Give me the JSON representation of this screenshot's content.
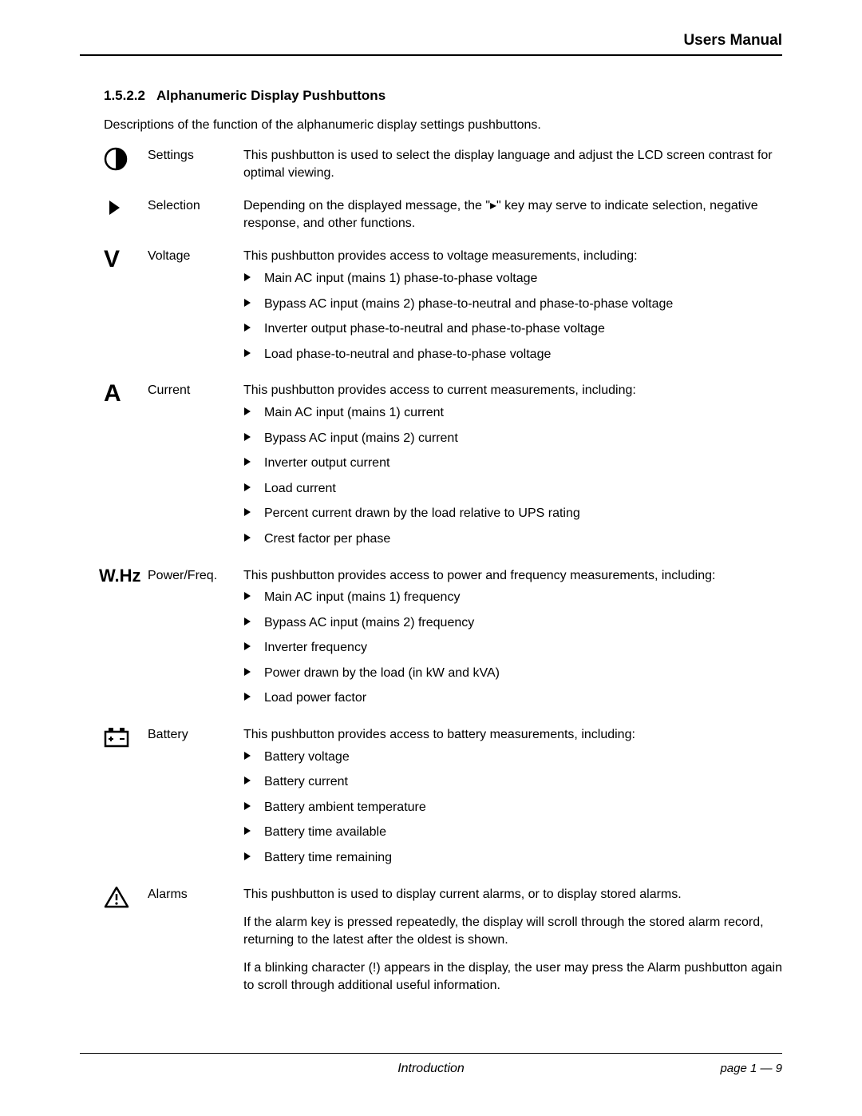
{
  "header": {
    "title": "Users Manual"
  },
  "section": {
    "number": "1.5.2.2",
    "title": "Alphanumeric Display Pushbuttons",
    "intro": "Descriptions of the function of the alphanumeric display settings pushbuttons."
  },
  "rows": {
    "settings": {
      "label": "Settings",
      "desc": "This pushbutton is used to select the display language and adjust the LCD screen contrast for optimal viewing."
    },
    "selection": {
      "label": "Selection",
      "desc": "Depending on the displayed message, the \"▸\" key may serve to indicate selection, negative response, and other functions."
    },
    "voltage": {
      "label": "Voltage",
      "desc": "This pushbutton provides access to voltage measurements, including:",
      "bullets": [
        "Main AC input (mains 1) phase-to-phase voltage",
        "Bypass AC input (mains 2) phase-to-neutral and phase-to-phase voltage",
        "Inverter output phase-to-neutral and phase-to-phase voltage",
        "Load phase-to-neutral and phase-to-phase voltage"
      ]
    },
    "current": {
      "label": "Current",
      "desc": "This pushbutton provides access to current measurements, including:",
      "bullets": [
        "Main AC input (mains 1) current",
        "Bypass AC input (mains 2) current",
        "Inverter output current",
        "Load current",
        "Percent current drawn by the load relative to UPS rating",
        "Crest factor per phase"
      ]
    },
    "powerfreq": {
      "label": "Power/Freq.",
      "desc": "This pushbutton provides access to power and frequency measurements, including:",
      "bullets": [
        "Main AC input (mains 1) frequency",
        "Bypass AC input (mains 2) frequency",
        "Inverter frequency",
        "Power drawn by the load (in kW and kVA)",
        "Load power factor"
      ]
    },
    "battery": {
      "label": "Battery",
      "desc": "This pushbutton provides access to battery measurements, including:",
      "bullets": [
        "Battery voltage",
        "Battery current",
        "Battery ambient temperature",
        "Battery time available",
        "Battery time remaining"
      ]
    },
    "alarms": {
      "label": "Alarms",
      "p1": "This pushbutton is used to display current alarms, or to display stored alarms.",
      "p2": "If the alarm key is pressed repeatedly, the display will scroll through the stored alarm record, returning to the latest after the oldest is shown.",
      "p3": "If a blinking character (!) appears in the display, the user may press the Alarm pushbutton again to scroll through additional useful information."
    }
  },
  "icons": {
    "voltage_letter": "V",
    "current_letter": "A",
    "powerfreq_text": "W.Hz"
  },
  "footer": {
    "center": "Introduction",
    "page": "page 1 — 9"
  },
  "style": {
    "text_color": "#000000",
    "bg_color": "#ffffff",
    "body_fontsize": 16,
    "heading_fontsize": 17,
    "header_fontsize": 19,
    "icon_letter_fontsize": 30,
    "rule_color": "#000000"
  }
}
